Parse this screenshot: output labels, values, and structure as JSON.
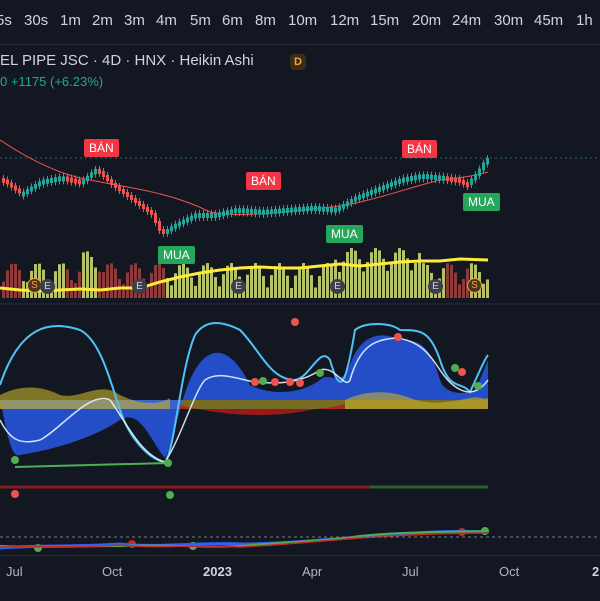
{
  "intervals": [
    "5s",
    "30s",
    "1m",
    "2m",
    "3m",
    "4m",
    "5m",
    "6m",
    "8m",
    "10m",
    "12m",
    "15m",
    "20m",
    "24m",
    "30m",
    "45m",
    "1h"
  ],
  "legend": {
    "symbol_line": "EL PIPE JSC · 4D · HNX · Heikin Ashi",
    "badge": "D",
    "change": "0  +1175 (+6.23%)"
  },
  "signals": {
    "sell": [
      "BÁN",
      "BÁN",
      "BÁN"
    ],
    "buy": [
      "MUA",
      "MUA",
      "MUA"
    ]
  },
  "events": [
    "S",
    "E",
    "E",
    "E",
    "E",
    "E",
    "S"
  ],
  "time_axis": [
    "Jul",
    "Oct",
    "2023",
    "Apr",
    "Jul",
    "Oct",
    "2"
  ],
  "colors": {
    "background": "#131722",
    "up": "#26a69a",
    "down": "#ef5350",
    "volume_up": "#b5c267",
    "volume_down": "#8c3a3a",
    "ma_yellow": "#ffeb3b",
    "wave_blue": "#2962ff",
    "wave_light": "#4fc3f7"
  }
}
